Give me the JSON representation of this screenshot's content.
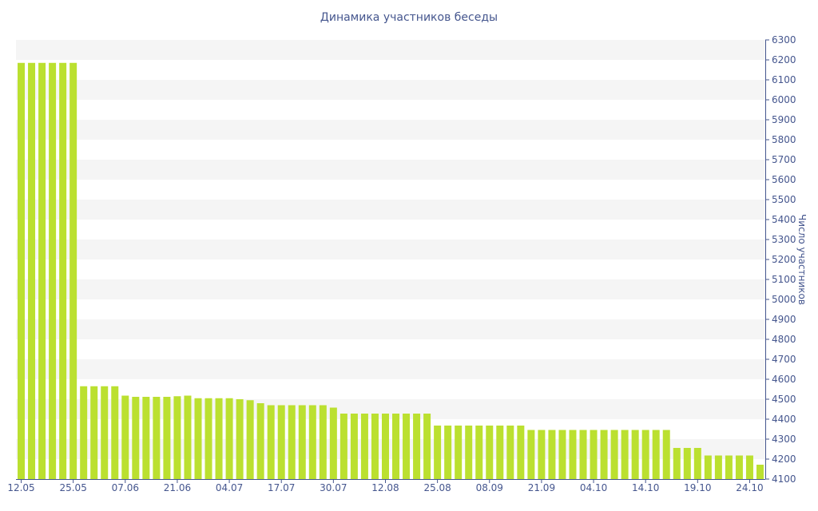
{
  "chart_data": {
    "type": "bar",
    "title": "Динамика участников беседы",
    "ylabel": "Число участников",
    "xlabel": "",
    "ylim": [
      4100,
      6300
    ],
    "y_ticks": [
      4100,
      4200,
      4300,
      4400,
      4500,
      4600,
      4700,
      4800,
      4900,
      5000,
      5100,
      5200,
      5300,
      5400,
      5500,
      5600,
      5700,
      5800,
      5900,
      6000,
      6100,
      6200,
      6300
    ],
    "y_axis_position": "right",
    "x_tick_labels": [
      {
        "index": 0,
        "label": "12.05"
      },
      {
        "index": 5,
        "label": "25.05"
      },
      {
        "index": 10,
        "label": "07.06"
      },
      {
        "index": 15,
        "label": "21.06"
      },
      {
        "index": 20,
        "label": "04.07"
      },
      {
        "index": 25,
        "label": "17.07"
      },
      {
        "index": 30,
        "label": "30.07"
      },
      {
        "index": 35,
        "label": "12.08"
      },
      {
        "index": 40,
        "label": "25.08"
      },
      {
        "index": 45,
        "label": "08.09"
      },
      {
        "index": 50,
        "label": "21.09"
      },
      {
        "index": 55,
        "label": "04.10"
      },
      {
        "index": 60,
        "label": "14.10"
      },
      {
        "index": 65,
        "label": "19.10"
      },
      {
        "index": 70,
        "label": "24.10"
      }
    ],
    "values": [
      6185,
      6185,
      6185,
      6185,
      6185,
      6185,
      4565,
      4565,
      4565,
      4565,
      4518,
      4512,
      4512,
      4512,
      4512,
      4515,
      4518,
      4505,
      4505,
      4505,
      4505,
      4500,
      4495,
      4480,
      4470,
      4470,
      4470,
      4470,
      4470,
      4470,
      4458,
      4428,
      4428,
      4428,
      4428,
      4428,
      4428,
      4428,
      4428,
      4428,
      4368,
      4368,
      4368,
      4368,
      4368,
      4368,
      4368,
      4368,
      4368,
      4346,
      4346,
      4346,
      4346,
      4346,
      4346,
      4346,
      4346,
      4346,
      4346,
      4346,
      4346,
      4346,
      4346,
      4256,
      4256,
      4256,
      4218,
      4218,
      4218,
      4218,
      4218,
      4172
    ],
    "grid": "horizontal-bands",
    "colors": {
      "bar": "#bbe030",
      "text": "#45568e",
      "band": "#f5f5f5",
      "axis": "#45568e"
    }
  }
}
